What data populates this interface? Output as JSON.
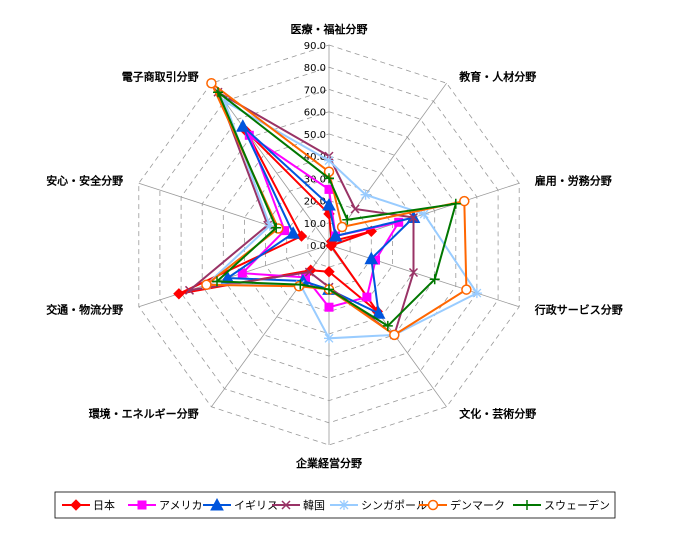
{
  "chart_data": {
    "type": "radar",
    "title": "",
    "axes": [
      "医療・福祉分野",
      "教育・人材分野",
      "雇用・労務分野",
      "行政サービス分野",
      "文化・芸術分野",
      "企業経営分野",
      "環境・エネルギー分野",
      "交通・物流分野",
      "安心・安全分野",
      "電子商取引分野"
    ],
    "ticks": [
      "0.0",
      "10.0",
      "20.0",
      "30.0",
      "40.0",
      "50.0",
      "60.0",
      "70.0",
      "80.0",
      "90.0"
    ],
    "rmax": 90,
    "grid": true,
    "legend_position": "bottom",
    "series": [
      {
        "name": "日本",
        "color": "#FF0000",
        "marker": "diamond",
        "values": [
          14,
          2,
          20,
          1,
          37,
          12,
          14,
          71,
          13,
          63
        ]
      },
      {
        "name": "アメリカ",
        "color": "#FF00FF",
        "marker": "square",
        "values": [
          25,
          5,
          33,
          22,
          29,
          28,
          18,
          41,
          21,
          61
        ]
      },
      {
        "name": "イギリス",
        "color": "#0055DD",
        "marker": "triangle",
        "values": [
          18,
          5,
          40,
          20,
          38,
          20,
          20,
          48,
          17,
          66
        ]
      },
      {
        "name": "韓国",
        "color": "#993366",
        "marker": "cross",
        "values": [
          40,
          20,
          40,
          40,
          50,
          19,
          15,
          66,
          29,
          85
        ]
      },
      {
        "name": "シンガポール",
        "color": "#99CCFF",
        "marker": "star",
        "values": [
          38,
          28,
          45,
          70,
          50,
          42,
          22,
          58,
          28,
          80
        ]
      },
      {
        "name": "デンマーク",
        "color": "#FF6600",
        "marker": "circle",
        "values": [
          33,
          10,
          64,
          65,
          50,
          20,
          23,
          58,
          24,
          90
        ]
      },
      {
        "name": "スウェーデン",
        "color": "#007700",
        "marker": "plus",
        "values": [
          30,
          14,
          60,
          50,
          45,
          20,
          22,
          53,
          25,
          85
        ]
      }
    ]
  }
}
